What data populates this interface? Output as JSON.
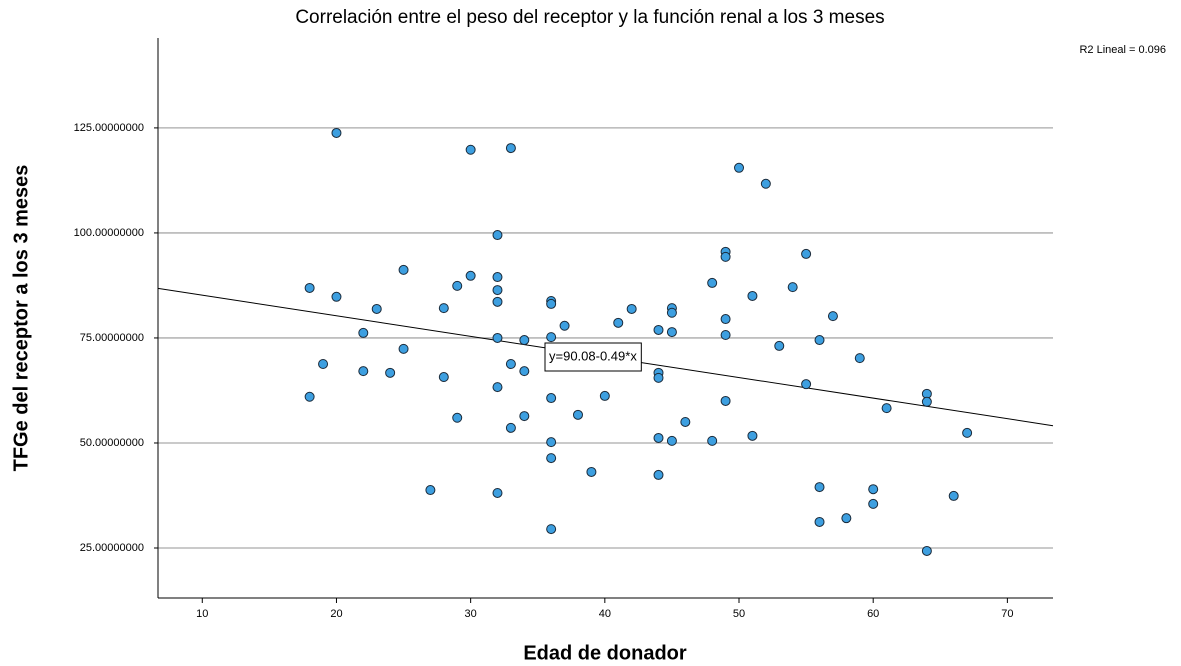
{
  "chart_data": {
    "type": "scatter",
    "title": "Correlación entre el peso del receptor y la función renal a los 3 meses",
    "x_label": "Edad de donador",
    "y_label": "TFGe del receptor a los 3 meses",
    "r2_label": "R2 Lineal = 0.096",
    "fit": {
      "intercept": 90.08,
      "slope": -0.49,
      "label": "y=90.08-0.49*x"
    },
    "color": "#3d9fe0",
    "grid": true,
    "xlim": [
      6.7,
      73.4
    ],
    "ylim": [
      13.1,
      146.4
    ],
    "xticks": [
      10,
      20,
      30,
      40,
      50,
      60,
      70
    ],
    "yticks": [
      {
        "value": 25,
        "label": "25.00000000"
      },
      {
        "value": 50,
        "label": "50.00000000"
      },
      {
        "value": 75,
        "label": "75.00000000"
      },
      {
        "value": 100,
        "label": "100.00000000"
      },
      {
        "value": 125,
        "label": "125.00000000"
      }
    ],
    "x": [
      20,
      30,
      33,
      50,
      52,
      32,
      49,
      49,
      55,
      25,
      30,
      32,
      29,
      18,
      48,
      54,
      32,
      20,
      51,
      36,
      36,
      32,
      23,
      28,
      42,
      45,
      45,
      57,
      49,
      41,
      37,
      44,
      45,
      22,
      49,
      32,
      36,
      34,
      56,
      53,
      25,
      59,
      19,
      33,
      22,
      24,
      34,
      28,
      44,
      44,
      32,
      55,
      64,
      64,
      18,
      40,
      36,
      49,
      61,
      38,
      34,
      29,
      46,
      33,
      51,
      67,
      44,
      45,
      48,
      36,
      36,
      39,
      44,
      27,
      56,
      60,
      32,
      66,
      60,
      58,
      56,
      36,
      64
    ],
    "values": [
      123.8,
      119.8,
      120.2,
      115.5,
      111.7,
      99.5,
      95.5,
      94.3,
      95,
      91.2,
      89.8,
      89.5,
      87.4,
      86.9,
      88.1,
      87.1,
      86.4,
      84.8,
      85,
      83.8,
      83.1,
      83.6,
      81.9,
      82.1,
      81.9,
      82.1,
      81,
      80.2,
      79.5,
      78.6,
      77.9,
      76.9,
      76.4,
      76.2,
      75.7,
      75,
      75.2,
      74.5,
      74.5,
      73.1,
      72.4,
      70.2,
      68.8,
      68.8,
      67.1,
      66.7,
      67.1,
      65.7,
      66.7,
      65.5,
      63.3,
      64,
      61.7,
      59.8,
      61,
      61.2,
      60.7,
      60,
      58.3,
      56.7,
      56.4,
      56,
      55,
      53.6,
      51.7,
      52.4,
      51.2,
      50.5,
      50.5,
      50.2,
      46.4,
      43.1,
      42.4,
      38.8,
      39.5,
      39,
      38.1,
      37.4,
      35.5,
      32.1,
      31.2,
      29.5,
      24.3
    ]
  }
}
